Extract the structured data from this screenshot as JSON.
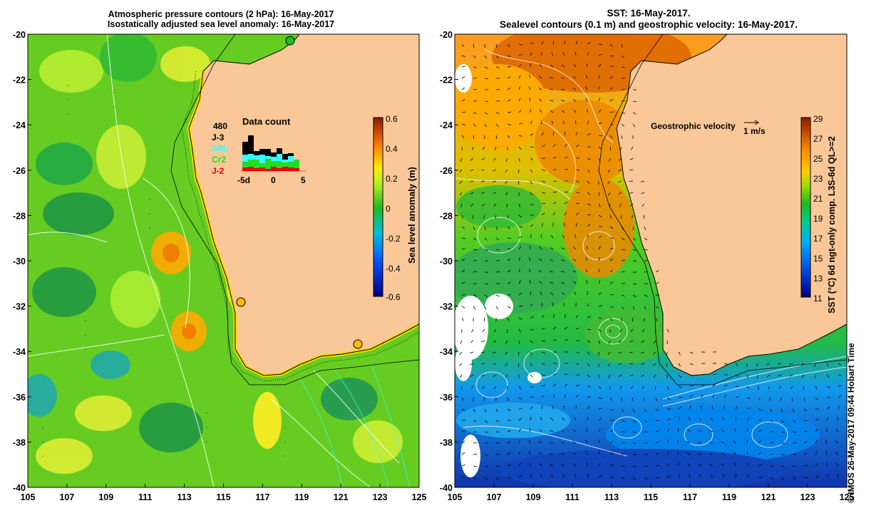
{
  "left_panel": {
    "title_line1": "Atmospheric pressure contours (2 hPa): 16-May-2017",
    "title_line2": "Isostatically adjusted sea level anomaly: 16-May-2017",
    "colorbar_label": "Sea level anomaly (m)",
    "colorbar_ticks": [
      "0.6",
      "0.4",
      "0.2",
      "0",
      "-0.2",
      "-0.4",
      "-0.6"
    ],
    "data_count": {
      "title": "Data count",
      "value": "480",
      "missions": [
        {
          "name": "J-3",
          "color": "#000000"
        },
        {
          "name": "SRL",
          "color": "#33ffff"
        },
        {
          "name": "Cr2",
          "color": "#22dd22"
        },
        {
          "name": "J-2",
          "color": "#ee0000"
        }
      ],
      "x_ticks": [
        "-5d",
        "0",
        "5"
      ]
    }
  },
  "right_panel": {
    "title_line1": "SST: 16-May-2017.",
    "title_line2": "Sealevel contours (0.1 m) and geostrophic velocity: 16-May-2017.",
    "legend_text": "Geostrophic velocity",
    "legend_scale": "1 m/s",
    "colorbar_label": "SST (°C) 6d ngt-only comp. L3S-6d QL>=2",
    "colorbar_ticks": [
      "29",
      "27",
      "25",
      "23",
      "21",
      "19",
      "17",
      "15",
      "13",
      "11"
    ]
  },
  "axes": {
    "lat_ticks": [
      "-20",
      "-22",
      "-24",
      "-26",
      "-28",
      "-30",
      "-32",
      "-34",
      "-36",
      "-38",
      "-40"
    ],
    "lon_ticks": [
      "105",
      "107",
      "109",
      "111",
      "113",
      "115",
      "117",
      "119",
      "121",
      "123",
      "125"
    ]
  },
  "copyright": "©  IMOS 26-May-2017 09:44 Hobart Time"
}
